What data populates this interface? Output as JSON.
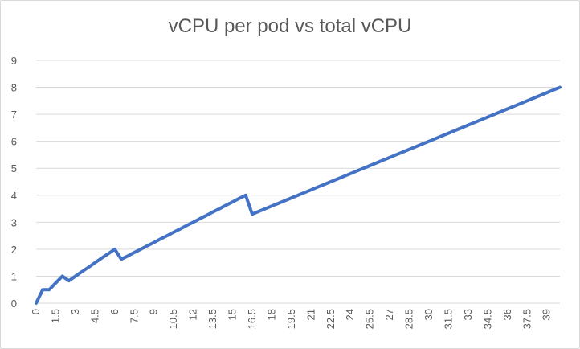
{
  "chart_data": {
    "type": "line",
    "title": "vCPU per pod vs total vCPU",
    "xlabel": "",
    "ylabel": "",
    "ylim": [
      0,
      9
    ],
    "yticks": [
      0,
      1,
      2,
      3,
      4,
      5,
      6,
      7,
      8,
      9
    ],
    "grid": true,
    "legend": "none",
    "colors": {
      "line": "#4472c4",
      "grid": "#d9d9d9",
      "text": "#595959"
    },
    "categories": [
      "0",
      "0.5",
      "1",
      "1.5",
      "2",
      "2.5",
      "3",
      "3.5",
      "4",
      "4.5",
      "5",
      "5.5",
      "6",
      "6.5",
      "7",
      "7.5",
      "8",
      "8.5",
      "9",
      "9.5",
      "10",
      "10.5",
      "11",
      "11.5",
      "12",
      "12.5",
      "13",
      "13.5",
      "14",
      "14.5",
      "15",
      "15.5",
      "16",
      "16.5",
      "17",
      "17.5",
      "18",
      "18.5",
      "19",
      "19.5",
      "20",
      "20.5",
      "21",
      "21.5",
      "22",
      "22.5",
      "23",
      "23.5",
      "24",
      "24.5",
      "25",
      "25.5",
      "26",
      "26.5",
      "27",
      "27.5",
      "28",
      "28.5",
      "29",
      "29.5",
      "30",
      "30.5",
      "31",
      "31.5",
      "32",
      "32.5",
      "33",
      "33.5",
      "34",
      "34.5",
      "35",
      "35.5",
      "36",
      "36.5",
      "37",
      "37.5",
      "38",
      "38.5",
      "39",
      "39.5",
      "40"
    ],
    "x_tick_labels": [
      "0",
      "1.5",
      "3",
      "4.5",
      "6",
      "7.5",
      "9",
      "10.5",
      "12",
      "13.5",
      "15",
      "16.5",
      "18",
      "19.5",
      "21",
      "22.5",
      "24",
      "25.5",
      "27",
      "28.5",
      "30",
      "31.5",
      "33",
      "34.5",
      "36",
      "37.5",
      "39"
    ],
    "series": [
      {
        "name": "",
        "values": [
          0,
          0.5,
          0.5,
          0.75,
          1,
          0.83,
          1,
          1.17,
          1.33,
          1.5,
          1.67,
          1.83,
          2,
          1.63,
          1.75,
          1.88,
          2,
          2.13,
          2.25,
          2.38,
          2.5,
          2.63,
          2.75,
          2.88,
          3,
          3.13,
          3.25,
          3.38,
          3.5,
          3.63,
          3.75,
          3.88,
          4,
          3.3,
          3.4,
          3.5,
          3.6,
          3.7,
          3.8,
          3.9,
          4,
          4.1,
          4.2,
          4.3,
          4.4,
          4.5,
          4.6,
          4.7,
          4.8,
          4.9,
          5,
          5.1,
          5.2,
          5.3,
          5.4,
          5.5,
          5.6,
          5.7,
          5.8,
          5.9,
          6,
          6.1,
          6.2,
          6.3,
          6.4,
          6.5,
          6.6,
          6.7,
          6.8,
          6.9,
          7,
          7.1,
          7.2,
          7.3,
          7.4,
          7.5,
          7.6,
          7.7,
          7.8,
          7.9,
          8
        ]
      }
    ]
  }
}
